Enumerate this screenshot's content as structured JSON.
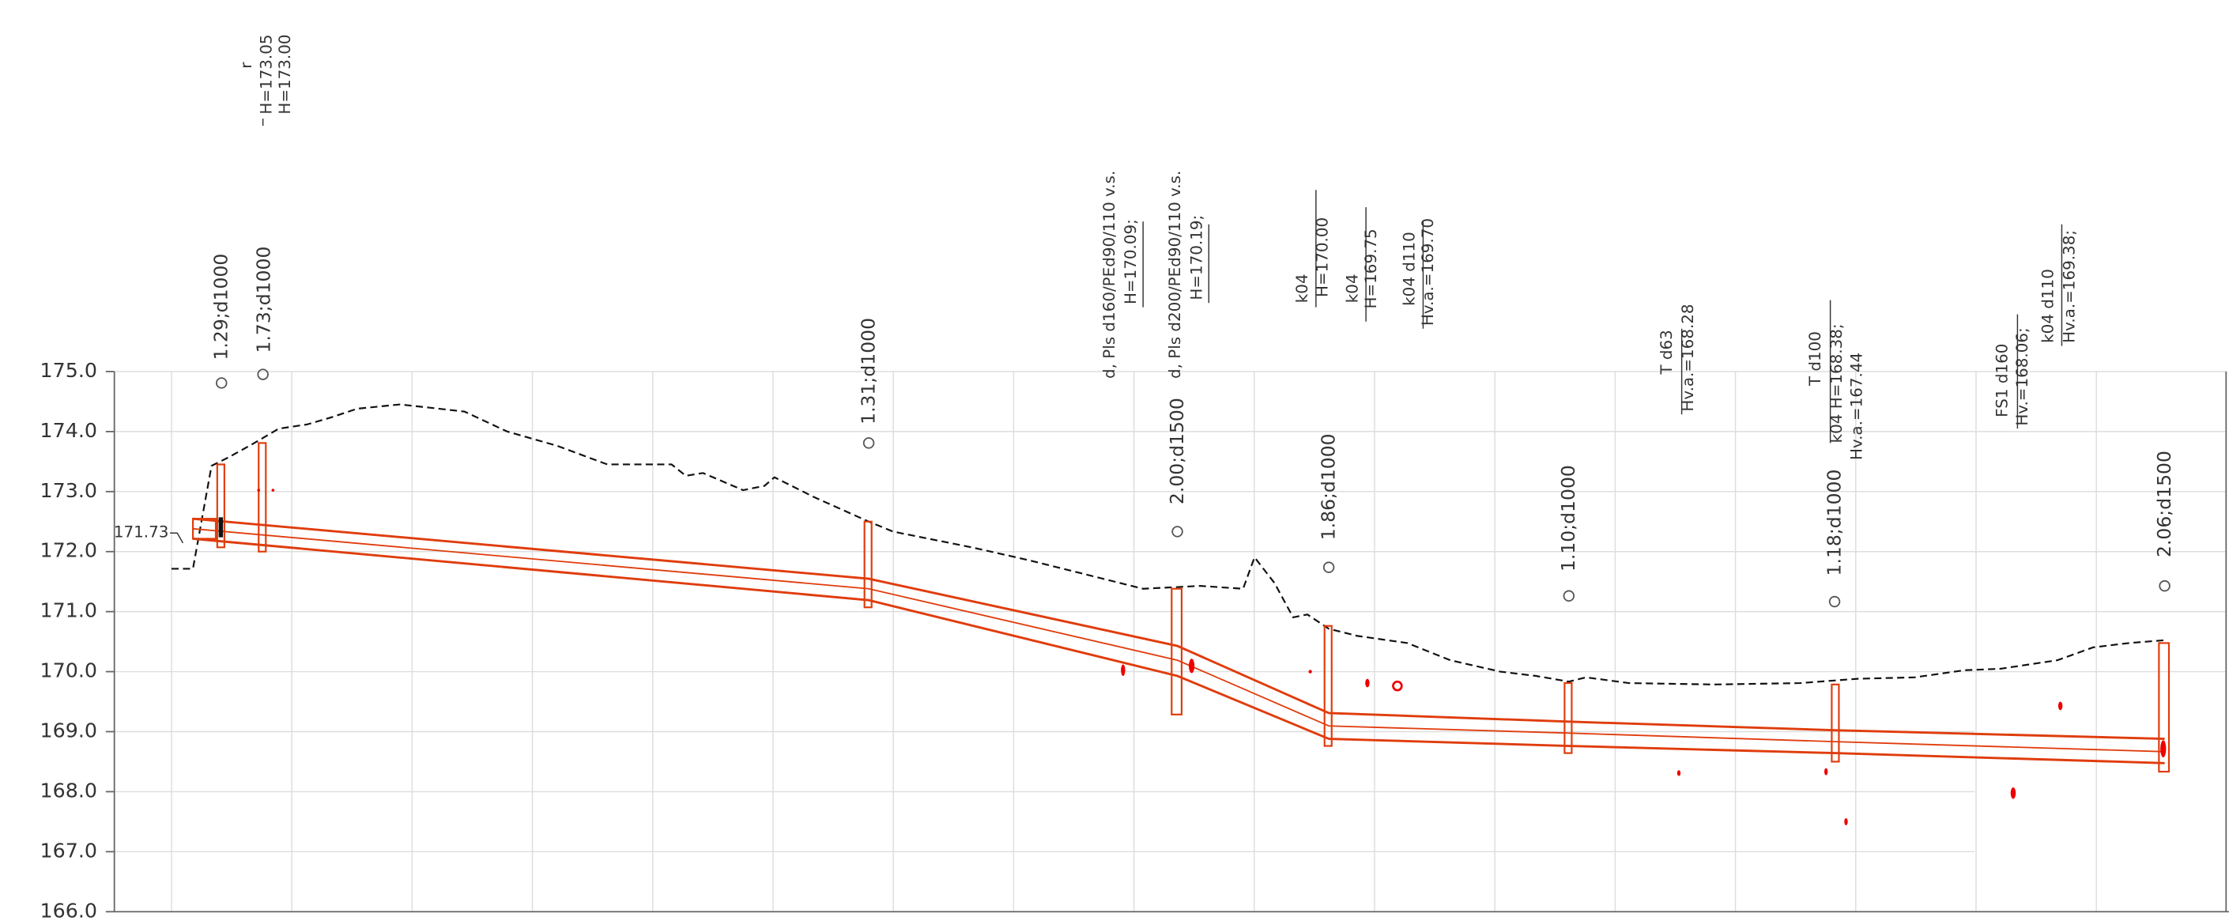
{
  "axis": {
    "yticks": [
      {
        "value": 175,
        "label": "175.0"
      },
      {
        "value": 174,
        "label": "174.0"
      },
      {
        "value": 173,
        "label": "173.0"
      },
      {
        "value": 172,
        "label": "172.0"
      },
      {
        "value": 171,
        "label": "171.0"
      },
      {
        "value": 170,
        "label": "170.0"
      },
      {
        "value": 169,
        "label": "169.0"
      },
      {
        "value": 168,
        "label": "168.0"
      },
      {
        "value": 167,
        "label": "167.0"
      },
      {
        "value": 166,
        "label": "166.0"
      }
    ]
  },
  "start_label": "171.73",
  "wells": [
    "1.29;d1000",
    "1.73;d1000",
    "1.31;d1000",
    "2.00;d1500",
    "1.86;d1000",
    "1.10;d1000",
    "1.18;d1000",
    "2.06;d1500"
  ],
  "notes": [
    "r",
    "H=173.05",
    "H=173.00",
    "d, Pls  d160/PEd90/110  v.s.",
    "H=170.09;",
    "d, Pls  d200/PEd90/110  v.s.",
    "H=170.19;",
    "k04",
    "H=170.00",
    "k04",
    "H=169.75",
    "k04  d110",
    "Hv.a.=169.70",
    "T  d63",
    "Hv.a.=168.28",
    "T  d100",
    "k04  H=168.38;",
    "Hv.a.=167.44",
    "FS1  d160",
    "Hv.=168.06;",
    "k04  d110",
    "Hv.a.=169.38;"
  ]
}
